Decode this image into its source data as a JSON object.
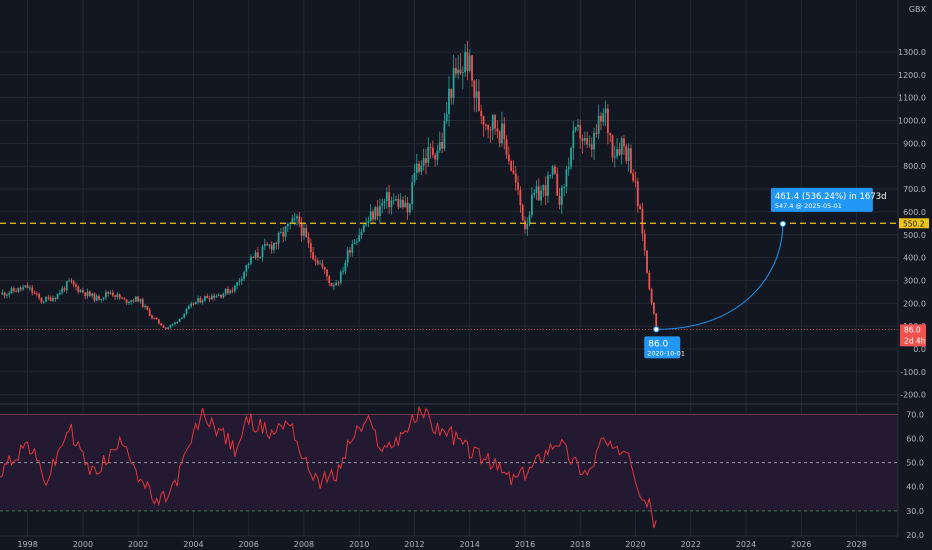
{
  "currency": "GBX",
  "colors": {
    "background": "#131722",
    "grid": "#242833",
    "up": "#26a69a",
    "down": "#ef5350",
    "rsi_line": "#e0353b",
    "rsi_band": "#2a1f3a",
    "dashed_level": "#f0c419",
    "annotation": "#2196f3",
    "price_label": "#ef5350"
  },
  "price_axis_ticks": [
    "1300.0",
    "1200.0",
    "1100.0",
    "1000.0",
    "900.0",
    "800.0",
    "700.0",
    "600.0",
    "500.0",
    "400.0",
    "300.0",
    "200.0",
    "100.0",
    "0.0",
    "-100.0",
    "-200.0"
  ],
  "rsi_axis_ticks": [
    "70.0",
    "60.0",
    "50.0",
    "40.0",
    "30.0",
    "20.0"
  ],
  "time_axis_ticks": [
    "1998",
    "2000",
    "2002",
    "2004",
    "2006",
    "2008",
    "2010",
    "2012",
    "2014",
    "2016",
    "2018",
    "2020",
    "2022",
    "2024",
    "2026",
    "2028"
  ],
  "labels": {
    "level_tag": "550.2",
    "last_price_tag": "86.0",
    "countdown_tag": "2d 4h",
    "start_value": "86.0",
    "start_date": "2020-10-01",
    "projection_main": "461.4 (536.24%) in 1673d",
    "projection_sub": "547.4 @ 2025-05-01"
  },
  "chart_data": [
    {
      "type": "candlestick",
      "interval": "monthly",
      "ylabel": "GBX",
      "ylim": [
        -250,
        1400
      ],
      "xlim": [
        1997.0,
        2029.5
      ],
      "horizontal_line": 550.2,
      "last_price": 86.0,
      "close_path": [
        [
          1997.0,
          240
        ],
        [
          1998.0,
          270
        ],
        [
          1998.5,
          210
        ],
        [
          1999.0,
          230
        ],
        [
          1999.5,
          290
        ],
        [
          2000.0,
          250
        ],
        [
          2000.5,
          220
        ],
        [
          2001.0,
          250
        ],
        [
          2001.5,
          210
        ],
        [
          2002.0,
          220
        ],
        [
          2002.5,
          140
        ],
        [
          2003.0,
          90
        ],
        [
          2003.3,
          110
        ],
        [
          2003.7,
          160
        ],
        [
          2004.0,
          200
        ],
        [
          2004.5,
          230
        ],
        [
          2005.0,
          240
        ],
        [
          2005.5,
          270
        ],
        [
          2006.0,
          380
        ],
        [
          2006.5,
          430
        ],
        [
          2007.0,
          470
        ],
        [
          2007.5,
          540
        ],
        [
          2007.8,
          560
        ],
        [
          2008.2,
          440
        ],
        [
          2008.6,
          370
        ],
        [
          2009.0,
          280
        ],
        [
          2009.3,
          310
        ],
        [
          2009.7,
          460
        ],
        [
          2010.0,
          510
        ],
        [
          2010.5,
          590
        ],
        [
          2011.0,
          650
        ],
        [
          2011.5,
          640
        ],
        [
          2011.8,
          590
        ],
        [
          2012.0,
          790
        ],
        [
          2012.5,
          850
        ],
        [
          2013.0,
          900
        ],
        [
          2013.3,
          1150
        ],
        [
          2013.6,
          1200
        ],
        [
          2013.9,
          1280
        ],
        [
          2014.2,
          1100
        ],
        [
          2014.6,
          1000
        ],
        [
          2015.0,
          980
        ],
        [
          2015.3,
          900
        ],
        [
          2015.7,
          700
        ],
        [
          2016.0,
          540
        ],
        [
          2016.3,
          660
        ],
        [
          2016.7,
          700
        ],
        [
          2017.0,
          760
        ],
        [
          2017.3,
          650
        ],
        [
          2017.7,
          900
        ],
        [
          2018.0,
          950
        ],
        [
          2018.3,
          850
        ],
        [
          2018.7,
          980
        ],
        [
          2018.9,
          1030
        ],
        [
          2019.2,
          870
        ],
        [
          2019.5,
          910
        ],
        [
          2019.8,
          840
        ],
        [
          2020.0,
          700
        ],
        [
          2020.25,
          520
        ],
        [
          2020.4,
          350
        ],
        [
          2020.6,
          200
        ],
        [
          2020.75,
          86
        ]
      ],
      "rsi_path": [
        [
          1997.0,
          47
        ],
        [
          1998.0,
          58
        ],
        [
          1998.7,
          42
        ],
        [
          1999.5,
          65
        ],
        [
          2000.3,
          45
        ],
        [
          2001.0,
          53
        ],
        [
          2001.5,
          60
        ],
        [
          2002.0,
          45
        ],
        [
          2002.7,
          32
        ],
        [
          2003.3,
          40
        ],
        [
          2003.8,
          55
        ],
        [
          2004.3,
          70
        ],
        [
          2005.0,
          63
        ],
        [
          2005.5,
          55
        ],
        [
          2006.0,
          68
        ],
        [
          2006.8,
          62
        ],
        [
          2007.5,
          68
        ],
        [
          2008.0,
          50
        ],
        [
          2008.6,
          42
        ],
        [
          2009.2,
          45
        ],
        [
          2009.7,
          60
        ],
        [
          2010.3,
          67
        ],
        [
          2010.9,
          55
        ],
        [
          2011.4,
          60
        ],
        [
          2012.0,
          68
        ],
        [
          2012.3,
          72
        ],
        [
          2012.7,
          65
        ],
        [
          2013.3,
          62
        ],
        [
          2014.0,
          55
        ],
        [
          2014.5,
          52
        ],
        [
          2015.0,
          48
        ],
        [
          2015.5,
          43
        ],
        [
          2016.0,
          45
        ],
        [
          2016.6,
          53
        ],
        [
          2017.2,
          60
        ],
        [
          2017.7,
          51
        ],
        [
          2018.3,
          45
        ],
        [
          2018.8,
          60
        ],
        [
          2019.3,
          53
        ],
        [
          2019.7,
          58
        ],
        [
          2020.0,
          45
        ],
        [
          2020.2,
          38
        ],
        [
          2020.5,
          32
        ],
        [
          2020.75,
          23
        ]
      ],
      "rsi_levels": [
        70,
        50,
        30
      ],
      "projection": {
        "from": {
          "date": "2020-10-01",
          "value": 86.0
        },
        "to": {
          "date": "2025-05-01",
          "value": 547.4
        },
        "change": 461.4,
        "change_pct": 536.24,
        "days": 1673
      }
    }
  ]
}
